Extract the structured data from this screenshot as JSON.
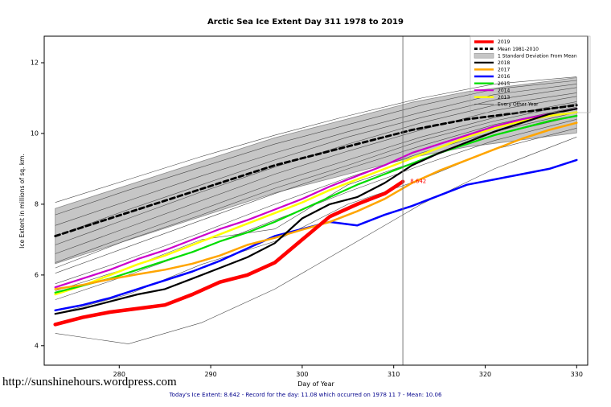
{
  "page": {
    "url": "http://sunshinehours.wordpress.com",
    "footer_stats": "Today's Ice Extent: 8.642  - Record for the day: 11.08 which occurred on 1978 11 7  - Mean: 10.06"
  },
  "legend": {
    "items": [
      {
        "label": "2019",
        "color": "#ff0000",
        "type": "line",
        "lw": 4.5
      },
      {
        "label": "Mean 1981-2010",
        "color": "#000000",
        "type": "dashed",
        "lw": 2.8
      },
      {
        "label": "1 Standard Deviation From Mean",
        "color": "#c6c6c6",
        "type": "band",
        "lw": 1
      },
      {
        "label": "2018",
        "color": "#000000",
        "type": "line",
        "lw": 2.2
      },
      {
        "label": "2017",
        "color": "#ffa500",
        "type": "line",
        "lw": 2.5
      },
      {
        "label": "2016",
        "color": "#0000ff",
        "type": "line",
        "lw": 2.5
      },
      {
        "label": "2015",
        "color": "#00dd00",
        "type": "line",
        "lw": 2.2
      },
      {
        "label": "2014",
        "color": "#cc00cc",
        "type": "line",
        "lw": 2.2
      },
      {
        "label": "2013",
        "color": "#ffff00",
        "type": "line",
        "lw": 2.5
      },
      {
        "label": "Every Other Year",
        "color": "#4a4a4a",
        "type": "line",
        "lw": 0.7
      }
    ]
  },
  "chart_data": {
    "type": "line",
    "title": "Arctic Sea Ice Extent Day 311 1978 to 2019",
    "xlabel": "Day of Year",
    "ylabel": "Ice Extent in millions of sq. km.",
    "xlim": [
      271.8,
      331.2
    ],
    "ylim": [
      3.45,
      12.75
    ],
    "xticks": [
      280,
      290,
      300,
      310,
      320,
      330
    ],
    "yticks": [
      4,
      6,
      8,
      10,
      12
    ],
    "vline_x": 311,
    "annotation": {
      "text": "8.642",
      "x": 311.8,
      "y": 8.642,
      "color": "#ff0000"
    },
    "x_main": [
      273,
      276,
      279,
      282,
      285,
      288,
      291,
      294,
      297,
      300,
      303,
      306,
      309,
      312,
      315,
      318,
      321,
      324,
      327,
      330
    ],
    "band": {
      "fill": "#c6c6c6",
      "edge": "#8a8a8a",
      "x": [
        273,
        276,
        279,
        282,
        285,
        288,
        291,
        294,
        297,
        300,
        303,
        306,
        309,
        312,
        315,
        318,
        321,
        324,
        327,
        330
      ],
      "upper": [
        7.88,
        8.13,
        8.38,
        8.63,
        8.88,
        9.13,
        9.38,
        9.63,
        9.88,
        10.08,
        10.28,
        10.48,
        10.68,
        10.88,
        11.03,
        11.18,
        11.28,
        11.38,
        11.48,
        11.58
      ],
      "lower": [
        6.32,
        6.57,
        6.82,
        7.07,
        7.32,
        7.57,
        7.82,
        8.07,
        8.32,
        8.52,
        8.72,
        8.92,
        9.12,
        9.32,
        9.47,
        9.62,
        9.72,
        9.82,
        9.92,
        10.02
      ]
    },
    "background_series": {
      "name": "Every Other Year",
      "color": "#4a4a4a",
      "lw": 0.6,
      "x": [
        273,
        281,
        289,
        297,
        305,
        313,
        321,
        330
      ],
      "values": [
        [
          4.35,
          4.05,
          4.65,
          5.6,
          6.8,
          8.0,
          9.0,
          9.9
        ],
        [
          4.9,
          5.45,
          6.3,
          6.95,
          8.0,
          8.7,
          9.55,
          10.15
        ],
        [
          5.3,
          6.0,
          6.75,
          7.55,
          8.35,
          9.1,
          9.8,
          10.4
        ],
        [
          5.55,
          6.2,
          7.0,
          7.3,
          8.55,
          9.25,
          9.95,
          10.5
        ],
        [
          5.75,
          6.45,
          7.2,
          8.0,
          8.75,
          9.45,
          10.05,
          10.6
        ],
        [
          6.05,
          6.8,
          7.55,
          8.3,
          9.0,
          9.65,
          10.25,
          10.75
        ],
        [
          6.2,
          7.0,
          7.7,
          8.45,
          9.1,
          9.8,
          10.35,
          10.85
        ],
        [
          6.35,
          7.1,
          7.85,
          8.6,
          9.25,
          9.9,
          10.45,
          10.9
        ],
        [
          6.6,
          7.35,
          8.1,
          8.85,
          9.5,
          10.1,
          10.65,
          11.05
        ],
        [
          6.85,
          7.6,
          8.35,
          9.05,
          9.7,
          10.3,
          10.8,
          11.15
        ],
        [
          7.1,
          7.85,
          8.55,
          9.25,
          9.9,
          10.45,
          10.95,
          11.3
        ],
        [
          7.4,
          8.1,
          8.8,
          9.45,
          10.05,
          10.6,
          11.1,
          11.4
        ],
        [
          7.7,
          8.4,
          9.05,
          9.7,
          10.25,
          10.8,
          11.25,
          11.5
        ],
        [
          8.05,
          8.7,
          9.35,
          9.95,
          10.5,
          11.0,
          11.4,
          11.6
        ]
      ]
    },
    "series": [
      {
        "name": "2013",
        "color": "#ffff00",
        "lw": 2.5,
        "values": [
          5.45,
          5.7,
          6.0,
          6.3,
          6.55,
          6.85,
          7.15,
          7.45,
          7.75,
          8.05,
          8.4,
          8.7,
          9.0,
          9.3,
          9.6,
          9.9,
          10.15,
          10.35,
          10.5,
          10.6
        ]
      },
      {
        "name": "2014",
        "color": "#cc00cc",
        "lw": 2.2,
        "values": [
          5.65,
          5.9,
          6.15,
          6.45,
          6.7,
          7.0,
          7.3,
          7.55,
          7.85,
          8.15,
          8.5,
          8.8,
          9.1,
          9.45,
          9.7,
          9.95,
          10.2,
          10.4,
          10.55,
          10.7
        ]
      },
      {
        "name": "2015",
        "color": "#00dd00",
        "lw": 2.2,
        "values": [
          5.5,
          5.7,
          5.9,
          6.15,
          6.4,
          6.65,
          6.95,
          7.2,
          7.5,
          7.85,
          8.2,
          8.55,
          8.85,
          9.15,
          9.45,
          9.7,
          9.95,
          10.15,
          10.35,
          10.5
        ]
      },
      {
        "name": "2016",
        "color": "#0000ff",
        "lw": 2.5,
        "values": [
          5.0,
          5.15,
          5.35,
          5.6,
          5.85,
          6.1,
          6.4,
          6.75,
          7.1,
          7.3,
          7.5,
          7.4,
          7.7,
          7.95,
          8.25,
          8.55,
          8.7,
          8.85,
          9.0,
          9.25
        ]
      },
      {
        "name": "2017",
        "color": "#ffa500",
        "lw": 2.5,
        "values": [
          5.6,
          5.72,
          5.88,
          6.02,
          6.15,
          6.32,
          6.55,
          6.85,
          7.05,
          7.28,
          7.5,
          7.8,
          8.15,
          8.6,
          8.95,
          9.25,
          9.55,
          9.85,
          10.1,
          10.3
        ]
      },
      {
        "name": "2018",
        "color": "#000000",
        "lw": 2.2,
        "values": [
          4.9,
          5.05,
          5.25,
          5.45,
          5.6,
          5.9,
          6.2,
          6.5,
          6.9,
          7.6,
          8.0,
          8.2,
          8.6,
          9.1,
          9.45,
          9.75,
          10.05,
          10.3,
          10.55,
          10.7
        ]
      },
      {
        "name": "Mean 1981-2010",
        "color": "#000000",
        "lw": 2.8,
        "dash": "6,4",
        "values": [
          7.1,
          7.35,
          7.6,
          7.85,
          8.1,
          8.35,
          8.6,
          8.85,
          9.1,
          9.3,
          9.5,
          9.7,
          9.9,
          10.1,
          10.25,
          10.4,
          10.5,
          10.6,
          10.7,
          10.8
        ]
      },
      {
        "name": "2019",
        "color": "#ff0000",
        "lw": 4.5,
        "x": [
          273,
          276,
          279,
          282,
          285,
          288,
          291,
          294,
          297,
          300,
          303,
          306,
          309,
          311
        ],
        "values": [
          4.6,
          4.8,
          4.95,
          5.05,
          5.15,
          5.45,
          5.8,
          6.0,
          6.35,
          7.0,
          7.65,
          8.0,
          8.3,
          8.642
        ]
      }
    ]
  }
}
